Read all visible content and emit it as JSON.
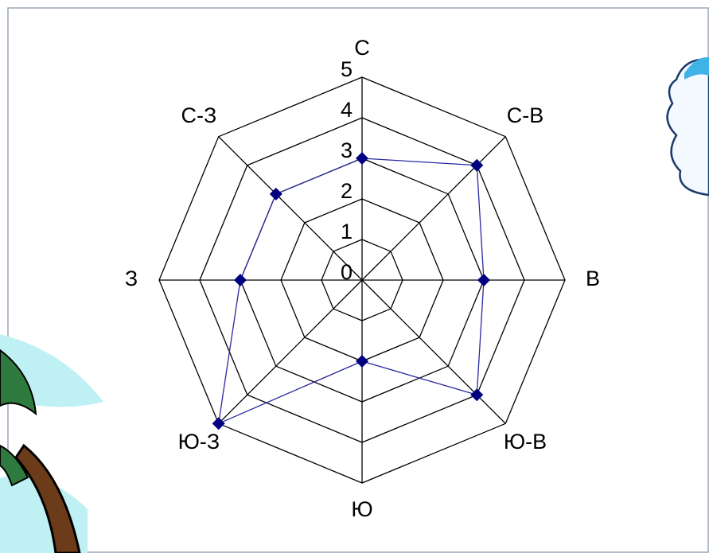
{
  "chart_data": {
    "type": "radar",
    "categories": [
      "С",
      "С-В",
      "В",
      "Ю-В",
      "Ю",
      "Ю-З",
      "З",
      "С-З"
    ],
    "values": [
      3,
      4,
      3,
      4,
      2,
      5,
      3,
      3
    ],
    "color": "#000080",
    "ylim": [
      0,
      5
    ],
    "yticks": [
      0,
      1,
      2,
      3,
      4,
      5
    ],
    "grid": true
  }
}
